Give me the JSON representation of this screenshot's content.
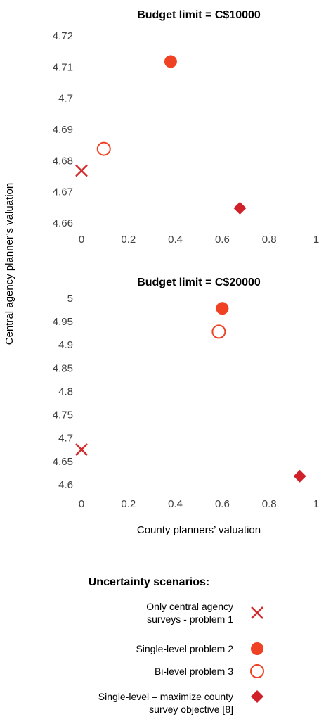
{
  "y_label": "Central agency planner’s valuation",
  "x_label": "County planners’ valuation",
  "legend_title": "Uncertainty scenarios:",
  "chart_data": [
    {
      "type": "scatter",
      "title": "Budget limit = C$10000",
      "xlim": [
        0,
        1
      ],
      "xticks": [
        0,
        0.2,
        0.4,
        0.6,
        0.8,
        1
      ],
      "ylim": [
        4.66,
        4.72
      ],
      "yticks": [
        4.66,
        4.67,
        4.68,
        4.69,
        4.7,
        4.71,
        4.72
      ],
      "series": [
        {
          "name": "Only central agency surveys - problem 1",
          "color": "#d42a2a",
          "marker": "x",
          "x": [
            0
          ],
          "values": [
            4.677
          ]
        },
        {
          "name": "Single-level problem 2",
          "color": "#ef4123",
          "marker": "circle",
          "x": [
            0.38
          ],
          "values": [
            4.712
          ]
        },
        {
          "name": "Bi-level problem 3",
          "color": "#ef4123",
          "marker": "circle-open",
          "x": [
            0.095
          ],
          "values": [
            4.684
          ]
        },
        {
          "name": "Single-level – maximize county survey objective [8]",
          "color": "#d0202a",
          "marker": "diamond",
          "x": [
            0.675
          ],
          "values": [
            4.665
          ]
        }
      ]
    },
    {
      "type": "scatter",
      "title": "Budget limit = C$20000",
      "xlim": [
        0,
        1
      ],
      "xticks": [
        0,
        0.2,
        0.4,
        0.6,
        0.8,
        1
      ],
      "ylim": [
        4.6,
        5
      ],
      "yticks": [
        4.6,
        4.65,
        4.7,
        4.75,
        4.8,
        4.85,
        4.9,
        4.95,
        5
      ],
      "series": [
        {
          "color": "#d42a2a",
          "marker": "x",
          "x": [
            0
          ],
          "values": [
            4.677
          ]
        },
        {
          "color": "#ef4123",
          "marker": "circle",
          "x": [
            0.6
          ],
          "values": [
            4.98
          ]
        },
        {
          "color": "#ef4123",
          "marker": "circle-open",
          "x": [
            0.585
          ],
          "values": [
            4.93
          ]
        },
        {
          "color": "#d0202a",
          "marker": "diamond",
          "x": [
            0.93
          ],
          "values": [
            4.62
          ]
        }
      ]
    }
  ]
}
